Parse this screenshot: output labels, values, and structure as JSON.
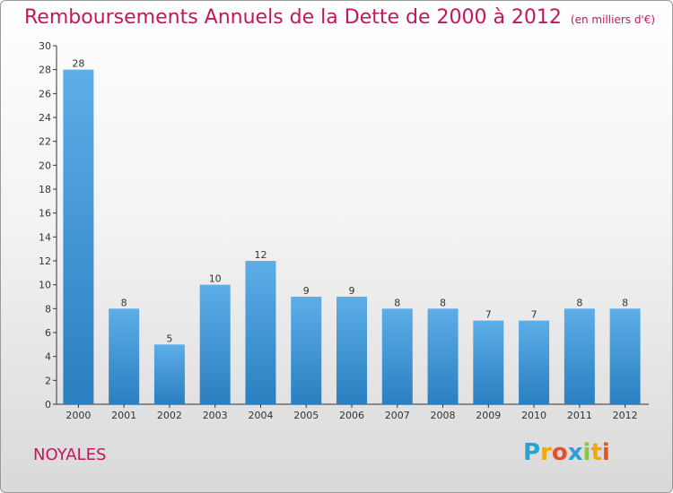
{
  "title": "Remboursements Annuels de la Dette de 2000 à 2012",
  "subtitle": "(en milliers d'€)",
  "commune": "NOYALES",
  "logo": {
    "letters": [
      "P",
      "r",
      "o",
      "x",
      "i",
      "t",
      "i"
    ],
    "colors": [
      "#29a3d6",
      "#f2a900",
      "#e8502a",
      "#2f9fd8",
      "#8cc63f",
      "#f2a900",
      "#e8502a"
    ]
  },
  "colors": {
    "title": "#c2185b",
    "bar_top": "#5daee8",
    "bar_bottom": "#2a7fc0",
    "axis": "#333333"
  },
  "chart_data": {
    "type": "bar",
    "title": "Remboursements Annuels de la Dette de 2000 à 2012",
    "subtitle": "(en milliers d'€)",
    "categories": [
      "2000",
      "2001",
      "2002",
      "2003",
      "2004",
      "2005",
      "2006",
      "2007",
      "2008",
      "2009",
      "2010",
      "2011",
      "2012"
    ],
    "values": [
      28,
      8,
      5,
      10,
      12,
      9,
      9,
      8,
      8,
      7,
      7,
      8,
      8
    ],
    "ylim": [
      0,
      30
    ],
    "yticks": [
      0,
      2,
      4,
      6,
      8,
      10,
      12,
      14,
      16,
      18,
      20,
      22,
      24,
      26,
      28,
      30
    ],
    "grid": false,
    "data_labels": true
  }
}
